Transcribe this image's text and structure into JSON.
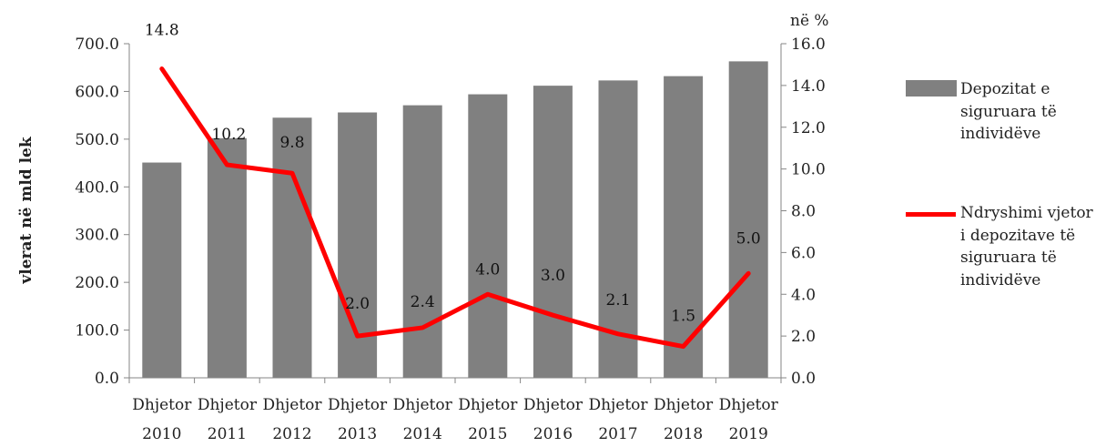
{
  "chart_data": {
    "type": "bar+line",
    "categories": [
      [
        "Dhjetor",
        "2010"
      ],
      [
        "Dhjetor",
        "2011"
      ],
      [
        "Dhjetor",
        "2012"
      ],
      [
        "Dhjetor",
        "2013"
      ],
      [
        "Dhjetor",
        "2014"
      ],
      [
        "Dhjetor",
        "2015"
      ],
      [
        "Dhjetor",
        "2016"
      ],
      [
        "Dhjetor",
        "2017"
      ],
      [
        "Dhjetor",
        "2018"
      ],
      [
        "Dhjetor",
        "2019"
      ]
    ],
    "series": [
      {
        "name": "Depozitat e siguruara të individëve",
        "type": "bar",
        "axis": "left",
        "color": "#808080",
        "values": [
          451,
          502,
          545,
          556,
          571,
          594,
          612,
          623,
          632,
          663
        ]
      },
      {
        "name": "Ndryshimi vjetor i depozitave të siguruara të individëve",
        "type": "line",
        "axis": "right",
        "color": "#ff0000",
        "values": [
          14.8,
          10.2,
          9.8,
          2.0,
          2.4,
          4.0,
          3.0,
          2.1,
          1.5,
          5.0
        ],
        "labels": [
          "14.8",
          "10.2",
          "9.8",
          "2.0",
          "2.4",
          "4.0",
          "3.0",
          "2.1",
          "1.5",
          "5.0"
        ]
      }
    ],
    "y_left": {
      "label": "vlerat në mld lek",
      "ylim": [
        0,
        700
      ],
      "ticks": [
        "0.0",
        "100.0",
        "200.0",
        "300.0",
        "400.0",
        "500.0",
        "600.0",
        "700.0"
      ]
    },
    "y_right": {
      "label": "në %",
      "ylim": [
        0,
        16
      ],
      "ticks": [
        "0.0",
        "2.0",
        "4.0",
        "6.0",
        "8.0",
        "10.0",
        "12.0",
        "14.0",
        "16.0"
      ]
    },
    "grid": false,
    "legend": "right"
  },
  "legend": {
    "bar_text": "Depozitat  e siguruara të individëve",
    "line_text": "Ndryshimi vjetor i depozitave të siguruara të individëve"
  }
}
